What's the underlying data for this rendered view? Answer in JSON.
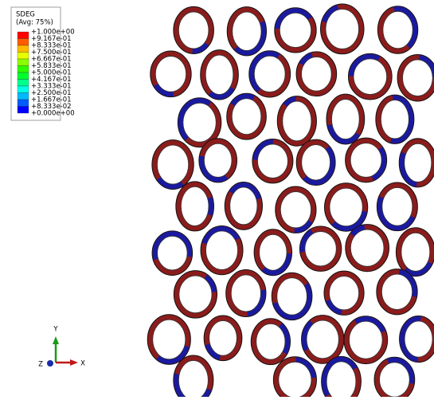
{
  "legend": {
    "title": "SDEG",
    "subtitle": "(Avg: 75%)",
    "labels": [
      "+1.000e+00",
      "+9.167e-01",
      "+8.333e-01",
      "+7.500e-01",
      "+6.667e-01",
      "+5.833e-01",
      "+5.000e-01",
      "+4.167e-01",
      "+3.333e-01",
      "+2.500e-01",
      "+1.667e-01",
      "+8.333e-02",
      "+0.000e+00"
    ],
    "colors": [
      "#ff0000",
      "#ff5c00",
      "#ffb900",
      "#e8ff00",
      "#8bff00",
      "#2eff00",
      "#00ff2e",
      "#00ff8b",
      "#00ffe8",
      "#00b9ff",
      "#005cff",
      "#0000ff"
    ]
  },
  "triad": {
    "y": "Y",
    "z": "Z",
    "x": "X"
  }
}
